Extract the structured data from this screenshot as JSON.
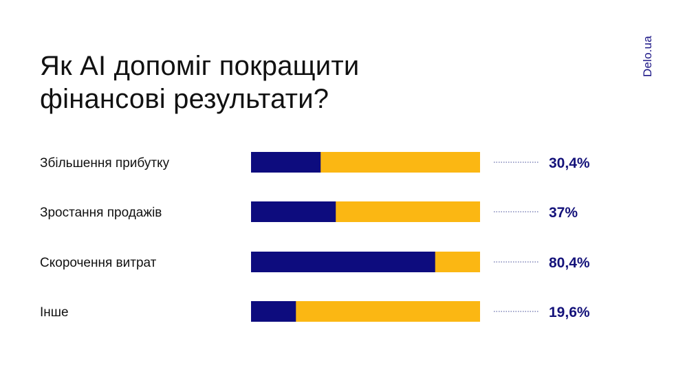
{
  "title_lines": [
    "Як AI допоміг покращити",
    "фінансові результати?"
  ],
  "brand": "Delo.ua",
  "colors": {
    "primary": "#0d0c7e",
    "secondary": "#fbb713",
    "label": "#111111",
    "value": "#14127a",
    "leader": "#7f84b8"
  },
  "chart_data": {
    "type": "bar",
    "orientation": "horizontal",
    "stacked_to_100": true,
    "title": "Як AI допоміг покращити фінансові результати?",
    "categories": [
      "Збільшення прибутку",
      "Зростання продажів",
      "Скорочення витрат",
      "Інше"
    ],
    "values": [
      30.4,
      37,
      80.4,
      19.6
    ],
    "value_labels": [
      "30,4%",
      "37%",
      "80,4%",
      "19,6%"
    ],
    "xlim": [
      0,
      100
    ],
    "grid": false,
    "legend": "none"
  }
}
